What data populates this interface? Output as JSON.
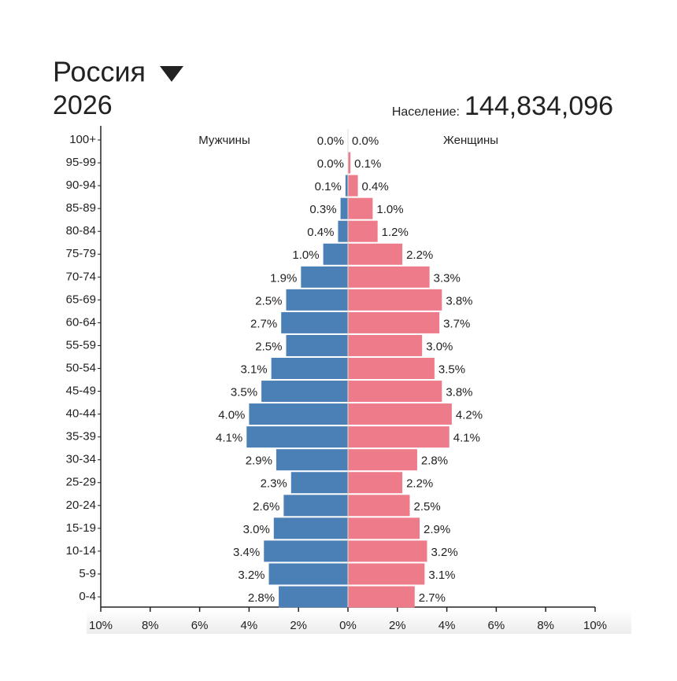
{
  "chart_data": {
    "type": "pyramid",
    "title": "Россия",
    "subtitle": "2026",
    "population_label": "Население:",
    "population": "144,834,096",
    "categories": [
      "100+",
      "95-99",
      "90-94",
      "85-89",
      "80-84",
      "75-79",
      "70-74",
      "65-69",
      "60-64",
      "55-59",
      "50-54",
      "45-49",
      "40-44",
      "35-39",
      "30-34",
      "25-29",
      "20-24",
      "15-19",
      "10-14",
      "5-9",
      "0-4"
    ],
    "series": [
      {
        "name": "Мужчины",
        "color": "#4b80b6",
        "side": "left",
        "values": [
          0.0,
          0.0,
          0.1,
          0.3,
          0.4,
          1.0,
          1.9,
          2.5,
          2.7,
          2.5,
          3.1,
          3.5,
          4.0,
          4.1,
          2.9,
          2.3,
          2.6,
          3.0,
          3.4,
          3.2,
          2.8
        ],
        "value_labels": [
          "0.0%",
          "0.0%",
          "0.1%",
          "0.3%",
          "0.4%",
          "1.0%",
          "1.9%",
          "2.5%",
          "2.7%",
          "2.5%",
          "3.1%",
          "3.5%",
          "4.0%",
          "4.1%",
          "2.9%",
          "2.3%",
          "2.6%",
          "3.0%",
          "3.4%",
          "3.2%",
          "2.8%"
        ]
      },
      {
        "name": "Женщины",
        "color": "#ee7b8a",
        "side": "right",
        "values": [
          0.0,
          0.1,
          0.4,
          1.0,
          1.2,
          2.2,
          3.3,
          3.8,
          3.7,
          3.0,
          3.5,
          3.8,
          4.2,
          4.1,
          2.8,
          2.2,
          2.5,
          2.9,
          3.2,
          3.1,
          2.7
        ],
        "value_labels": [
          "0.0%",
          "0.1%",
          "0.4%",
          "1.0%",
          "1.2%",
          "2.2%",
          "3.3%",
          "3.8%",
          "3.7%",
          "3.0%",
          "3.5%",
          "3.8%",
          "4.2%",
          "4.1%",
          "2.8%",
          "2.2%",
          "2.5%",
          "2.9%",
          "3.2%",
          "3.1%",
          "2.7%"
        ]
      }
    ],
    "xlim": [
      -10,
      10
    ],
    "xticks": [
      {
        "value": -10,
        "label": "10%"
      },
      {
        "value": -8,
        "label": "8%"
      },
      {
        "value": -6,
        "label": "6%"
      },
      {
        "value": -4,
        "label": "4%"
      },
      {
        "value": -2,
        "label": "2%"
      },
      {
        "value": 0,
        "label": "0%"
      },
      {
        "value": 2,
        "label": "2%"
      },
      {
        "value": 4,
        "label": "4%"
      },
      {
        "value": 6,
        "label": "6%"
      },
      {
        "value": 8,
        "label": "8%"
      },
      {
        "value": 10,
        "label": "10%"
      }
    ]
  }
}
